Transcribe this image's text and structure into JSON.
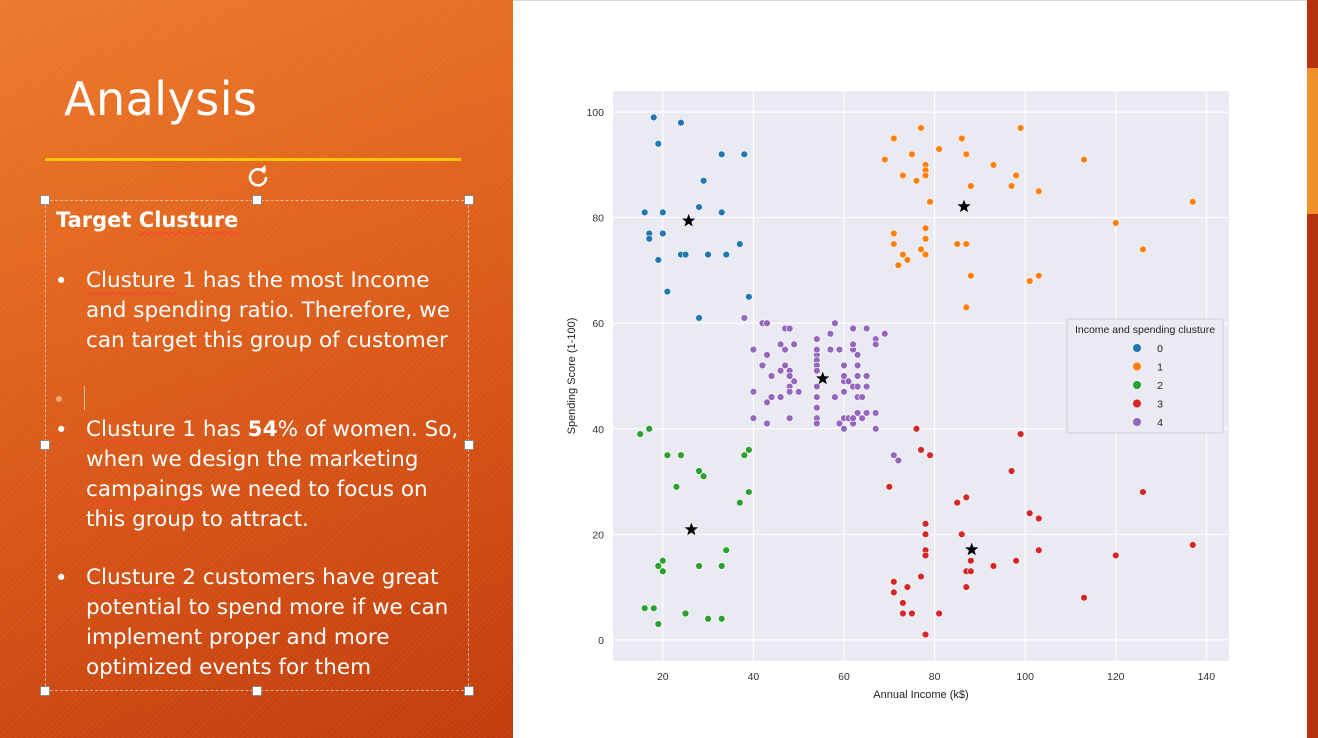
{
  "slide": {
    "title": "Analysis",
    "heading": "Target Clusture",
    "bullets": [
      {
        "pre": "",
        "squiggle": "Clusture",
        "post": " 1 has the most Income and spending ratio. Therefore, we can target this group of customer"
      },
      {
        "pre": "",
        "squiggle": "Clusture",
        "post_a": " 1 has ",
        "bold": "54",
        "post_b": "% of women. So, when we design the marketing ",
        "squiggle2": "campaings",
        "post_c": " we need to focus on this group to attract."
      },
      {
        "pre": "",
        "squiggle": "Clusture",
        "post": " 2 customers have great potential to spend more if we can implement proper and more optimized events for them"
      }
    ],
    "heading_main": "Target ",
    "heading_squiggle": "Clusture"
  },
  "icons": {
    "rotate": "rotate-handle-icon"
  },
  "colors": {
    "accent_rule": "#f7c600",
    "panel": "#e0611c",
    "cluster_0": "#1f77b4",
    "cluster_1": "#ff7f0e",
    "cluster_2": "#2ca02c",
    "cluster_3": "#d62728",
    "cluster_4": "#9467bd"
  },
  "chart_data": {
    "type": "scatter",
    "xlabel": "Annual Income (k$)",
    "ylabel": "Spending Score (1-100)",
    "xlim": [
      9,
      145
    ],
    "ylim": [
      -4,
      104
    ],
    "xticks": [
      20,
      40,
      60,
      80,
      100,
      120,
      140
    ],
    "yticks": [
      0,
      20,
      40,
      60,
      80,
      100
    ],
    "grid": true,
    "legend": {
      "title": "Income and spending clusture",
      "placement": "right",
      "entries": [
        "0",
        "1",
        "2",
        "3",
        "4"
      ]
    },
    "series": [
      {
        "name": "0",
        "color": "#1f77b4",
        "points": [
          [
            18,
            99
          ],
          [
            19,
            94
          ],
          [
            20,
            81
          ],
          [
            16,
            81
          ],
          [
            17,
            77
          ],
          [
            17,
            76
          ],
          [
            20,
            77
          ],
          [
            19,
            72
          ],
          [
            24,
            98
          ],
          [
            24,
            73
          ],
          [
            25,
            73
          ],
          [
            28,
            82
          ],
          [
            29,
            87
          ],
          [
            33,
            92
          ],
          [
            33,
            81
          ],
          [
            34,
            73
          ],
          [
            37,
            75
          ],
          [
            38,
            92
          ],
          [
            30,
            73
          ],
          [
            21,
            66
          ],
          [
            28,
            61
          ],
          [
            39,
            65
          ]
        ]
      },
      {
        "name": "1",
        "color": "#ff7f0e",
        "points": [
          [
            69,
            91
          ],
          [
            71,
            95
          ],
          [
            73,
            88
          ],
          [
            75,
            92
          ],
          [
            76,
            87
          ],
          [
            77,
            97
          ],
          [
            78,
            90
          ],
          [
            78,
            89
          ],
          [
            78,
            88
          ],
          [
            79,
            83
          ],
          [
            81,
            93
          ],
          [
            78,
            76
          ],
          [
            78,
            78
          ],
          [
            77,
            74
          ],
          [
            78,
            73
          ],
          [
            71,
            77
          ],
          [
            71,
            75
          ],
          [
            72,
            71
          ],
          [
            73,
            73
          ],
          [
            74,
            72
          ],
          [
            85,
            75
          ],
          [
            86,
            95
          ],
          [
            87,
            92
          ],
          [
            87,
            75
          ],
          [
            88,
            86
          ],
          [
            88,
            69
          ],
          [
            87,
            63
          ],
          [
            93,
            90
          ],
          [
            97,
            86
          ],
          [
            98,
            88
          ],
          [
            99,
            97
          ],
          [
            101,
            68
          ],
          [
            103,
            85
          ],
          [
            103,
            69
          ],
          [
            113,
            91
          ],
          [
            120,
            79
          ],
          [
            126,
            74
          ],
          [
            137,
            83
          ]
        ]
      },
      {
        "name": "2",
        "color": "#2ca02c",
        "points": [
          [
            15,
            39
          ],
          [
            16,
            6
          ],
          [
            17,
            40
          ],
          [
            18,
            6
          ],
          [
            19,
            3
          ],
          [
            19,
            14
          ],
          [
            20,
            15
          ],
          [
            20,
            13
          ],
          [
            21,
            35
          ],
          [
            23,
            29
          ],
          [
            24,
            35
          ],
          [
            25,
            5
          ],
          [
            28,
            14
          ],
          [
            28,
            32
          ],
          [
            29,
            31
          ],
          [
            30,
            4
          ],
          [
            33,
            4
          ],
          [
            33,
            14
          ],
          [
            34,
            17
          ],
          [
            37,
            26
          ],
          [
            38,
            35
          ],
          [
            39,
            36
          ],
          [
            39,
            28
          ]
        ]
      },
      {
        "name": "3",
        "color": "#d62728",
        "points": [
          [
            70,
            29
          ],
          [
            71,
            11
          ],
          [
            71,
            9
          ],
          [
            73,
            5
          ],
          [
            73,
            7
          ],
          [
            74,
            10
          ],
          [
            75,
            5
          ],
          [
            76,
            40
          ],
          [
            77,
            12
          ],
          [
            77,
            36
          ],
          [
            78,
            22
          ],
          [
            78,
            17
          ],
          [
            78,
            20
          ],
          [
            78,
            16
          ],
          [
            78,
            1
          ],
          [
            79,
            35
          ],
          [
            81,
            5
          ],
          [
            85,
            26
          ],
          [
            86,
            20
          ],
          [
            87,
            27
          ],
          [
            87,
            13
          ],
          [
            87,
            10
          ],
          [
            88,
            13
          ],
          [
            88,
            15
          ],
          [
            93,
            14
          ],
          [
            97,
            32
          ],
          [
            98,
            15
          ],
          [
            99,
            39
          ],
          [
            101,
            24
          ],
          [
            103,
            17
          ],
          [
            103,
            23
          ],
          [
            113,
            8
          ],
          [
            120,
            16
          ],
          [
            126,
            28
          ],
          [
            137,
            18
          ]
        ]
      },
      {
        "name": "4",
        "color": "#9467bd",
        "points": [
          [
            38,
            61
          ],
          [
            40,
            55
          ],
          [
            40,
            47
          ],
          [
            40,
            42
          ],
          [
            42,
            52
          ],
          [
            42,
            60
          ],
          [
            43,
            54
          ],
          [
            43,
            60
          ],
          [
            43,
            45
          ],
          [
            43,
            41
          ],
          [
            44,
            50
          ],
          [
            44,
            46
          ],
          [
            46,
            51
          ],
          [
            46,
            46
          ],
          [
            46,
            56
          ],
          [
            47,
            55
          ],
          [
            47,
            52
          ],
          [
            47,
            59
          ],
          [
            48,
            51
          ],
          [
            48,
            59
          ],
          [
            48,
            50
          ],
          [
            48,
            48
          ],
          [
            48,
            47
          ],
          [
            48,
            42
          ],
          [
            49,
            49
          ],
          [
            49,
            56
          ],
          [
            50,
            47
          ],
          [
            54,
            54
          ],
          [
            54,
            53
          ],
          [
            54,
            48
          ],
          [
            54,
            52
          ],
          [
            54,
            42
          ],
          [
            54,
            51
          ],
          [
            54,
            55
          ],
          [
            54,
            41
          ],
          [
            54,
            44
          ],
          [
            54,
            57
          ],
          [
            54,
            46
          ],
          [
            57,
            58
          ],
          [
            57,
            55
          ],
          [
            58,
            60
          ],
          [
            58,
            46
          ],
          [
            59,
            55
          ],
          [
            59,
            41
          ],
          [
            60,
            49
          ],
          [
            60,
            40
          ],
          [
            60,
            42
          ],
          [
            60,
            52
          ],
          [
            60,
            47
          ],
          [
            60,
            50
          ],
          [
            61,
            42
          ],
          [
            61,
            49
          ],
          [
            62,
            41
          ],
          [
            62,
            48
          ],
          [
            62,
            59
          ],
          [
            62,
            55
          ],
          [
            62,
            56
          ],
          [
            62,
            42
          ],
          [
            63,
            50
          ],
          [
            63,
            46
          ],
          [
            63,
            43
          ],
          [
            63,
            48
          ],
          [
            63,
            52
          ],
          [
            63,
            54
          ],
          [
            64,
            42
          ],
          [
            64,
            46
          ],
          [
            65,
            48
          ],
          [
            65,
            50
          ],
          [
            65,
            43
          ],
          [
            65,
            59
          ],
          [
            67,
            43
          ],
          [
            67,
            57
          ],
          [
            67,
            56
          ],
          [
            67,
            40
          ],
          [
            69,
            58
          ],
          [
            71,
            35
          ],
          [
            72,
            34
          ]
        ]
      }
    ],
    "centroids": [
      [
        25.7,
        79.4
      ],
      [
        86.5,
        82.1
      ],
      [
        26.3,
        20.9
      ],
      [
        88.2,
        17.1
      ],
      [
        55.3,
        49.5
      ]
    ]
  }
}
